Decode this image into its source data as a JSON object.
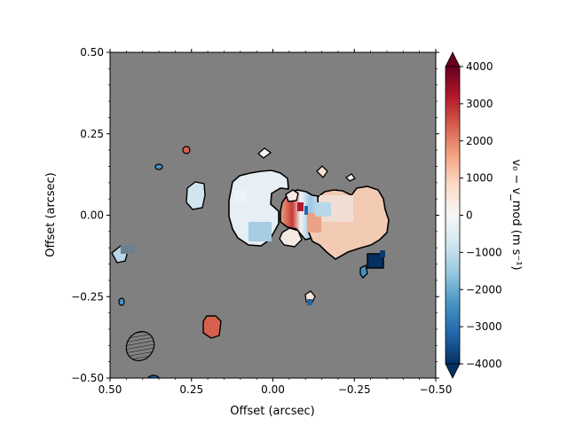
{
  "chart_data": {
    "type": "heatmap",
    "title": "",
    "xlabel": "Offset (arcsec)",
    "ylabel": "Offset (arcsec)",
    "xlim": [
      0.5,
      -0.5
    ],
    "ylim": [
      -0.5,
      0.5
    ],
    "x_ticks": [
      0.5,
      0.25,
      0.0,
      -0.25,
      -0.5
    ],
    "x_tick_labels": [
      "0.50",
      "0.25",
      "0.00",
      "−0.25",
      "−0.50"
    ],
    "y_ticks": [
      0.5,
      0.25,
      0.0,
      -0.25,
      -0.5
    ],
    "y_tick_labels": [
      "0.50",
      "0.25",
      "0.00",
      "−0.25",
      "−0.50"
    ],
    "background_color": "#808080",
    "colorbar": {
      "label": "v₀ − v_mod   (m s⁻¹)",
      "range": [
        -4000,
        4000
      ],
      "extend": "both",
      "colormap": "RdBu_r",
      "ticks": [
        4000,
        3000,
        2000,
        1000,
        0,
        -1000,
        -2000,
        -3000,
        -4000
      ],
      "tick_labels": [
        "4000",
        "3000",
        "2000",
        "1000",
        "0",
        "−1000",
        "−2000",
        "−3000",
        "−4000"
      ]
    },
    "regions": [
      {
        "x": 0.025,
        "y": -0.02,
        "value": -700
      },
      {
        "x": 0.1,
        "y": -0.02,
        "value": 200
      },
      {
        "x": -0.125,
        "y": -0.02,
        "value": 1200
      },
      {
        "x": -0.06,
        "y": 0.0,
        "value": -800
      },
      {
        "x": -0.02,
        "y": 0.02,
        "value": 2500
      },
      {
        "x": 0.26,
        "y": -0.07,
        "value": -600
      },
      {
        "x": -0.32,
        "y": -0.14,
        "value": -4000
      },
      {
        "x": 0.2,
        "y": -0.35,
        "value": 2800
      },
      {
        "x": 0.475,
        "y": -0.12,
        "value": -900
      }
    ],
    "beam": {
      "x": 0.405,
      "y": -0.405,
      "major": 0.085,
      "minor": 0.07,
      "pa_deg": 35
    }
  }
}
